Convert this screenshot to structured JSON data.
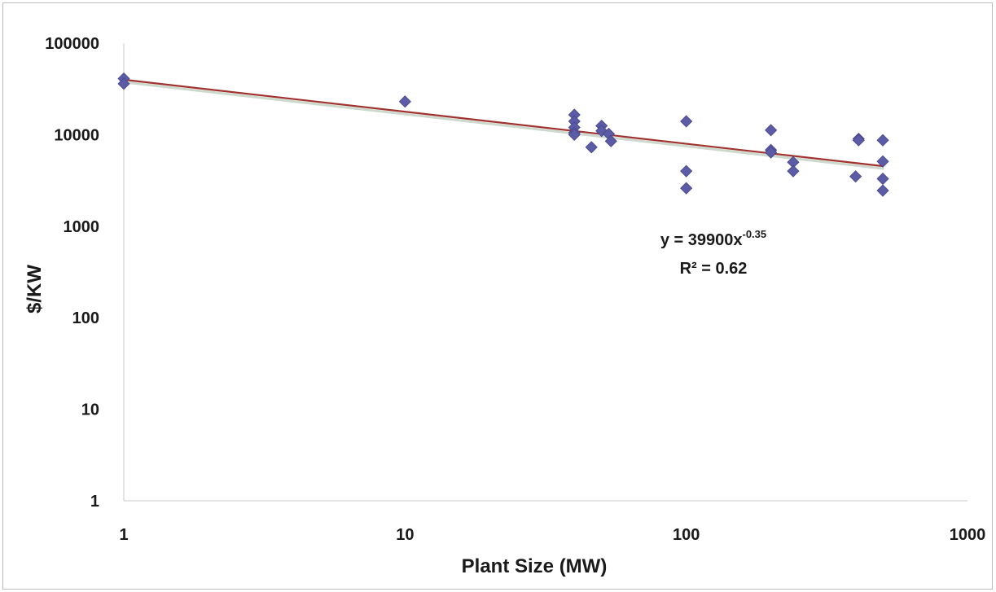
{
  "chart_data": {
    "type": "scatter",
    "title": "",
    "xlabel": "Plant Size (MW)",
    "ylabel": "$/KW",
    "x_scale": "log",
    "y_scale": "log",
    "xlim": [
      1,
      1000
    ],
    "ylim": [
      1,
      100000
    ],
    "x_ticks": [
      "1",
      "10",
      "100",
      "1000"
    ],
    "y_ticks": [
      "1",
      "10",
      "100",
      "1000",
      "10000",
      "100000"
    ],
    "grid": false,
    "legend": "none",
    "marker": "diamond",
    "marker_color": "#5b5ba6",
    "trendline_color": "#a0322f",
    "series": [
      {
        "points": [
          {
            "x": 1,
            "y": 41000
          },
          {
            "x": 1,
            "y": 36000
          },
          {
            "x": 10,
            "y": 23000
          },
          {
            "x": 40,
            "y": 16500
          },
          {
            "x": 40,
            "y": 14000
          },
          {
            "x": 40,
            "y": 12000
          },
          {
            "x": 40,
            "y": 10500
          },
          {
            "x": 40,
            "y": 10000
          },
          {
            "x": 46,
            "y": 7300
          },
          {
            "x": 50,
            "y": 12500
          },
          {
            "x": 50,
            "y": 11000
          },
          {
            "x": 53,
            "y": 10200
          },
          {
            "x": 54,
            "y": 8500
          },
          {
            "x": 100,
            "y": 14000
          },
          {
            "x": 100,
            "y": 4000
          },
          {
            "x": 100,
            "y": 2600
          },
          {
            "x": 200,
            "y": 11200
          },
          {
            "x": 200,
            "y": 6800
          },
          {
            "x": 200,
            "y": 6400
          },
          {
            "x": 240,
            "y": 5000
          },
          {
            "x": 240,
            "y": 4000
          },
          {
            "x": 400,
            "y": 3500
          },
          {
            "x": 410,
            "y": 9000
          },
          {
            "x": 410,
            "y": 8700
          },
          {
            "x": 500,
            "y": 8700
          },
          {
            "x": 500,
            "y": 5100
          },
          {
            "x": 500,
            "y": 3300
          },
          {
            "x": 500,
            "y": 2450
          }
        ]
      }
    ],
    "trendline": {
      "type": "power",
      "coefficient": 39900,
      "exponent": -0.35,
      "x_range": [
        1,
        500
      ],
      "equation_prefix": "y = 39900x",
      "equation_exponent": "-0.35",
      "r2_label": "R² = 0.62"
    }
  }
}
